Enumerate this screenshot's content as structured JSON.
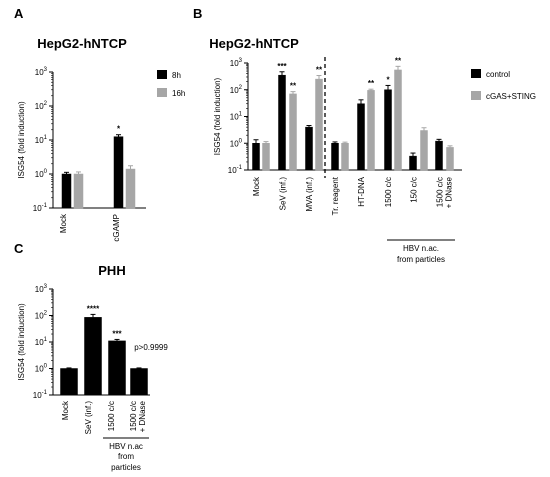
{
  "chart_data": [
    {
      "panel": "A",
      "type": "bar",
      "title": "HepG2-hNTCP",
      "ylabel": "ISG54 (fold induction)",
      "yscale": "log",
      "ylim": [
        0.1,
        1000
      ],
      "yticks": [
        "10⁻¹",
        "10⁰",
        "10¹",
        "10²",
        "10³"
      ],
      "categories": [
        "Mock",
        "cGAMP"
      ],
      "series": [
        {
          "name": "8h",
          "color": "#000000",
          "values": [
            1.0,
            12.5
          ],
          "errors": [
            0.12,
            1.8
          ]
        },
        {
          "name": "16h",
          "color": "#a6a6a6",
          "values": [
            1.0,
            1.4
          ],
          "errors": [
            0.15,
            0.35
          ]
        }
      ],
      "significance": [
        {
          "category": "cGAMP",
          "series": "8h",
          "label": "*"
        }
      ],
      "legend": "top-right"
    },
    {
      "panel": "B",
      "type": "bar",
      "title": "HepG2-hNTCP",
      "ylabel": "ISG54 (fold induction)",
      "yscale": "log",
      "ylim": [
        0.1,
        1000
      ],
      "yticks": [
        "10⁻¹",
        "10⁰",
        "10¹",
        "10²",
        "10³"
      ],
      "categories": [
        "Mock",
        "SeV (inf.)",
        "MVA (inf.)",
        "Tr. reagent",
        "HT-DNA",
        "1500 c/c",
        "150 c/c",
        "1500 c/c + DNase"
      ],
      "series": [
        {
          "name": "control",
          "color": "#000000",
          "values": [
            1.0,
            350,
            4.0,
            1.0,
            30,
            100,
            0.33,
            1.2
          ],
          "errors": [
            0.35,
            120,
            0.6,
            0.12,
            12,
            45,
            0.1,
            0.2
          ]
        },
        {
          "name": "cGAS+STING",
          "color": "#a6a6a6",
          "values": [
            1.0,
            70,
            250,
            1.0,
            95,
            550,
            3.0,
            0.7
          ],
          "errors": [
            0.15,
            15,
            90,
            0.1,
            10,
            200,
            0.8,
            0.1
          ]
        }
      ],
      "significance": [
        {
          "category": "SeV (inf.)",
          "series": "control",
          "label": "***"
        },
        {
          "category": "SeV (inf.)",
          "series": "cGAS+STING",
          "label": "**"
        },
        {
          "category": "MVA (inf.)",
          "series": "cGAS+STING",
          "label": "**"
        },
        {
          "category": "HT-DNA",
          "series": "cGAS+STING",
          "label": "**"
        },
        {
          "category": "1500 c/c",
          "series": "control",
          "label": "*"
        },
        {
          "category": "1500 c/c",
          "series": "cGAS+STING",
          "label": "**"
        }
      ],
      "group_label": "HBV n.ac. from particles",
      "legend": "right"
    },
    {
      "panel": "C",
      "type": "bar",
      "title": "PHH",
      "ylabel": "ISG54 (fold induction)",
      "yscale": "log",
      "ylim": [
        0.1,
        1000
      ],
      "yticks": [
        "10⁻¹",
        "10⁰",
        "10¹",
        "10²",
        "10³"
      ],
      "categories": [
        "Mock",
        "SeV (inf.)",
        "1500 c/c",
        "1500 c/c + DNase"
      ],
      "series": [
        {
          "name": "",
          "color": "#000000",
          "values": [
            1.0,
            85,
            11,
            1.0
          ],
          "errors": [
            0.05,
            25,
            1.5,
            0.05
          ]
        }
      ],
      "significance": [
        {
          "category": "SeV (inf.)",
          "label": "****"
        },
        {
          "category": "1500 c/c",
          "label": "***"
        },
        {
          "category": "1500 c/c + DNase",
          "label": "p>0.9999"
        }
      ],
      "group_label": "HBV n.ac from particles"
    }
  ]
}
